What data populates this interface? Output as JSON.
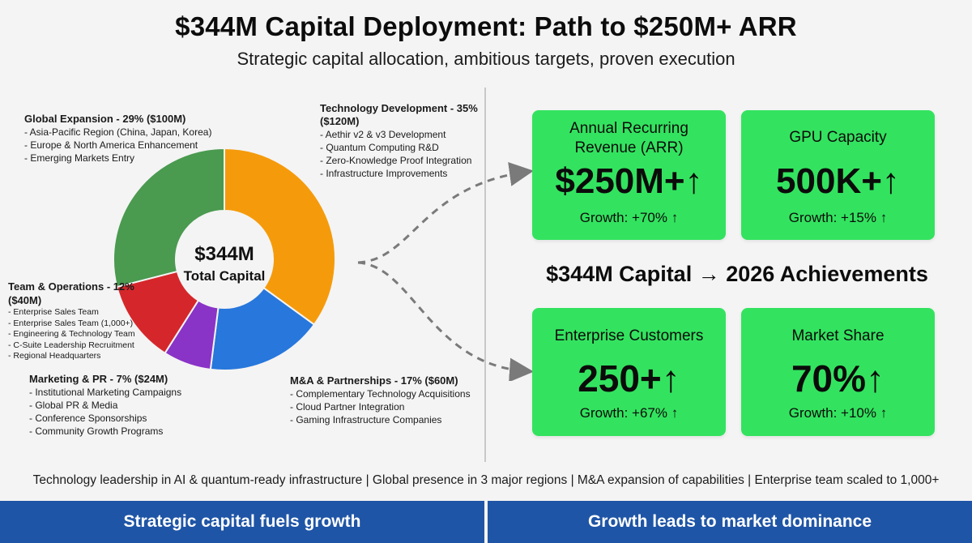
{
  "header": {
    "title": "$344M Capital Deployment: Path to $250M+ ARR",
    "subtitle": "Strategic capital allocation, ambitious targets, proven execution"
  },
  "chart_data": {
    "type": "pie",
    "center_value": "$344M",
    "center_label": "Total Capital",
    "segments": [
      {
        "name": "Technology Development",
        "percent": 35,
        "amount_m": 120,
        "color": "#f59b0b",
        "heading": "Technology Development - 35% ($120M)",
        "items": [
          "Aethir v2 & v3 Development",
          "Quantum Computing R&D",
          "Zero-Knowledge Proof Integration",
          "Infrastructure Improvements"
        ]
      },
      {
        "name": "M&A & Partnerships",
        "percent": 17,
        "amount_m": 60,
        "color": "#2777dc",
        "heading": "M&A & Partnerships - 17% ($60M)",
        "items": [
          "Complementary Technology Acquisitions",
          "Cloud Partner Integration",
          "Gaming Infrastructure Companies"
        ]
      },
      {
        "name": "Marketing & PR",
        "percent": 7,
        "amount_m": 24,
        "color": "#8a33c7",
        "heading": "Marketing & PR - 7% ($24M)",
        "items": [
          "Institutional Marketing Campaigns",
          "Global PR & Media",
          "Conference Sponsorships",
          "Community Growth Programs"
        ]
      },
      {
        "name": "Team & Operations",
        "percent": 12,
        "amount_m": 40,
        "color": "#d5272b",
        "heading": "Team & Operations - 12% ($40M)",
        "items": [
          "Enterprise Sales Team",
          "Enterprise Sales Team (1,000+)",
          "Engineering & Technology Team",
          "C-Suite Leadership Recruitment",
          "Regional Headquarters"
        ]
      },
      {
        "name": "Global Expansion",
        "percent": 29,
        "amount_m": 100,
        "color": "#4a9a50",
        "heading": "Global Expansion - 29% ($100M)",
        "items": [
          "Asia-Pacific Region (China, Japan, Korea)",
          "Europe & North America Enhancement",
          "Emerging Markets Entry"
        ]
      }
    ]
  },
  "metrics": [
    {
      "label": "Annual Recurring Revenue (ARR)",
      "value": "$250M+↑",
      "growth": "Growth: +70% ↑"
    },
    {
      "label": "GPU Capacity",
      "value": "500K+↑",
      "growth": "Growth: +15% ↑"
    },
    {
      "label": "Enterprise Customers",
      "value": "250+↑",
      "growth": "Growth: +67% ↑"
    },
    {
      "label": "Market Share",
      "value": "70%↑",
      "growth": "Growth: +10% ↑"
    }
  ],
  "achievements_heading": "$344M Capital → 2026 Achievements",
  "footer_note": "Technology leadership in AI & quantum-ready infrastructure | Global presence in 3 major regions | M&A expansion of capabilities | Enterprise team scaled to 1,000+",
  "banners": {
    "left": "Strategic capital fuels growth",
    "right": "Growth leads to market dominance"
  },
  "colors": {
    "card_green": "#33e35f",
    "banner_blue": "#1f55a6",
    "arrow_gray": "#7a7a7a"
  }
}
